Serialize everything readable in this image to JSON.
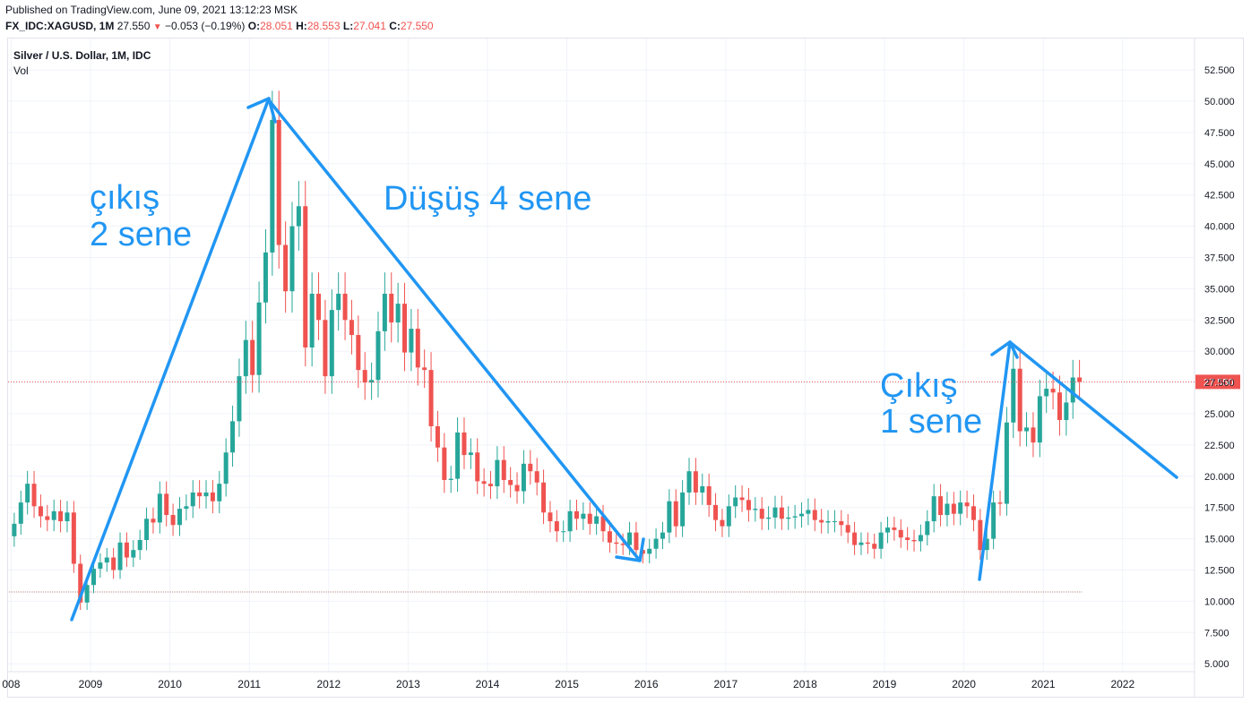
{
  "header": {
    "published": "Published on TradingView.com, June 09, 2021 13:12:23 MSK",
    "symbol": "FX_IDC:XAGUSD, 1M",
    "last": "27.550",
    "arrow": "▼",
    "change": "−0.053 (−0.19%)",
    "o_label": "O:",
    "o": "28.051",
    "h_label": "H:",
    "h": "28.553",
    "l_label": "L:",
    "l": "27.041",
    "c_label": "C:",
    "c": "27.550"
  },
  "legend": {
    "title": "Silver / U.S. Dollar, 1M, IDC",
    "vol": "Vol"
  },
  "annotations": {
    "rise1_l1": "çıkış",
    "rise1_l2": "2 sene",
    "fall": "Düşüş 4 sene",
    "rise2_l1": "Çıkış",
    "rise2_l2": "1 sene"
  },
  "chart_data": {
    "type": "candlestick",
    "title": "Silver / U.S. Dollar, 1M, IDC",
    "interval": "1M",
    "ylim": [
      4,
      54
    ],
    "y_ticks": [
      "52.500",
      "50.000",
      "47.500",
      "45.000",
      "42.500",
      "40.000",
      "37.500",
      "35.000",
      "32.500",
      "30.000",
      "27.500",
      "25.000",
      "22.500",
      "20.000",
      "17.500",
      "15.000",
      "12.500",
      "10.000",
      "7.500",
      "5.000"
    ],
    "x_ticks": [
      "008",
      "2009",
      "2010",
      "2011",
      "2012",
      "2013",
      "2014",
      "2015",
      "2016",
      "2017",
      "2018",
      "2019",
      "2020",
      "2021",
      "2022"
    ],
    "last_price": 27.55,
    "last_price_label": "27.550",
    "colors": {
      "up": "#26a69a",
      "down": "#ef5350",
      "annotation": "#2196f3",
      "grid": "#f0f3fa"
    },
    "candle_closes": [
      [
        2008,
        [
          16.2,
          17.9,
          19.4,
          17.6,
          16.8,
          16.5,
          17.2,
          16.4,
          17.1,
          13.0,
          9.9,
          11.3
        ]
      ],
      [
        2009,
        [
          12.6,
          13.1,
          13.5,
          12.5,
          14.7,
          13.5,
          14.1,
          14.9,
          16.6,
          16.3,
          18.6,
          16.9
        ]
      ],
      [
        2010,
        [
          16.1,
          17.4,
          17.6,
          18.7,
          18.4,
          18.7,
          18.0,
          19.4,
          21.9,
          24.4,
          28.0,
          30.9
        ]
      ],
      [
        2011,
        [
          28.1,
          33.9,
          37.9,
          48.5,
          38.5,
          34.8,
          40.0,
          41.6,
          30.3,
          34.6,
          32.5,
          28.0
        ]
      ],
      [
        2012,
        [
          33.3,
          34.6,
          32.5,
          31.3,
          28.5,
          27.5,
          27.7,
          31.6,
          34.6,
          32.3,
          33.8,
          29.9
        ]
      ],
      [
        2013,
        [
          31.8,
          28.7,
          28.5,
          24.0,
          22.3,
          19.7,
          19.8,
          23.5,
          21.7,
          21.9,
          19.6,
          19.4
        ]
      ],
      [
        2014,
        [
          19.2,
          21.3,
          19.7,
          19.3,
          18.8,
          21.0,
          20.4,
          19.5,
          17.1,
          16.4,
          15.6,
          15.6
        ]
      ],
      [
        2015,
        [
          17.2,
          16.6,
          17.0,
          16.2,
          16.8,
          15.6,
          14.7,
          14.6,
          14.5,
          15.5,
          14.1,
          13.8
        ]
      ],
      [
        2016,
        [
          14.2,
          15.0,
          15.5,
          18.0,
          16.0,
          18.7,
          20.4,
          18.7,
          19.2,
          17.7,
          16.5,
          16.0
        ]
      ],
      [
        2017,
        [
          17.6,
          18.3,
          18.1,
          17.3,
          17.4,
          16.6,
          16.7,
          17.5,
          16.6,
          16.7,
          16.8,
          17.0
        ]
      ],
      [
        2018,
        [
          17.3,
          16.5,
          16.3,
          16.4,
          16.4,
          16.1,
          15.5,
          14.5,
          14.7,
          14.6,
          14.2,
          15.5
        ]
      ],
      [
        2019,
        [
          15.9,
          15.7,
          15.1,
          14.9,
          14.8,
          15.3,
          16.4,
          18.4,
          16.9,
          17.8,
          17.0,
          17.9
        ]
      ],
      [
        2020,
        [
          17.6,
          16.5,
          14.1,
          15.0,
          17.9,
          17.8,
          24.3,
          28.6,
          23.6,
          23.9,
          22.7,
          26.4
        ]
      ],
      [
        2021,
        [
          27.0,
          26.7,
          24.5,
          25.9,
          27.9,
          27.55
        ]
      ]
    ]
  }
}
